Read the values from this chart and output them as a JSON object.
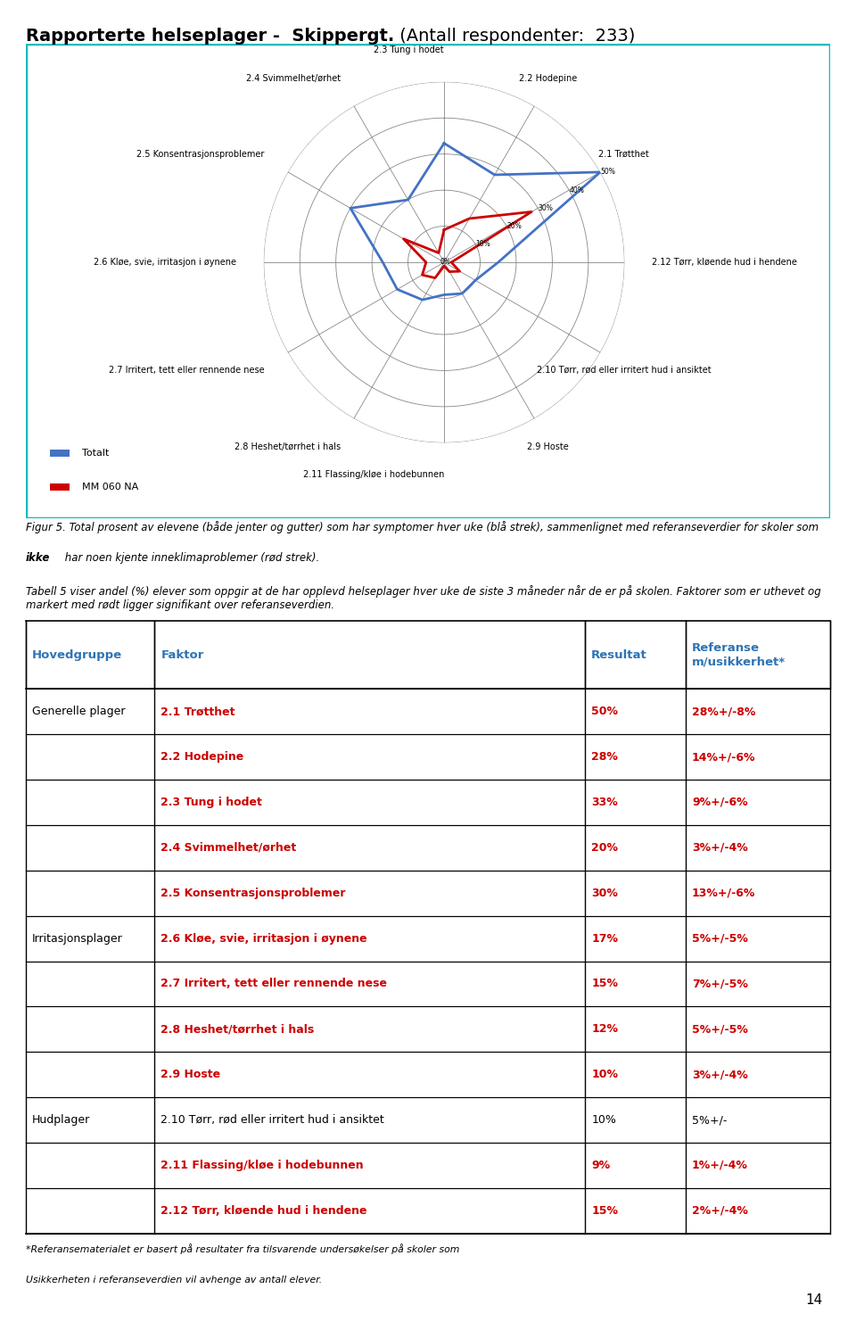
{
  "title_bold": "Rapporterte helseplager -  Skippergt.",
  "title_normal": " (Antall respondenter:  233)",
  "radar_labels": [
    "2.3 Tung i hodet",
    "2.2 Hodepine",
    "2.1 Trøtthet",
    "2.12 Tørr, kløende hud i hendene",
    "2.10 Tørr, rød eller irritert hud i ansiktet",
    "2.9 Hoste",
    "2.11 Flassing/kløe i hodebunnen",
    "2.8 Heshet/tørrhet i hals",
    "2.7 Irritert, tett eller rennende nese",
    "2.6 Kløe, svie, irritasjon i øynene",
    "2.5 Konsentrasjonsproblemer",
    "2.4 Svimmelhet/ørhet"
  ],
  "totalt_values": [
    33,
    28,
    50,
    15,
    10,
    10,
    9,
    12,
    15,
    17,
    30,
    20
  ],
  "ref_values": [
    9,
    14,
    28,
    2,
    5,
    3,
    1,
    5,
    7,
    5,
    13,
    3
  ],
  "radar_max": 50,
  "radar_ticks": [
    10,
    20,
    30,
    40,
    50
  ],
  "blue_color": "#4472C4",
  "red_color": "#CC0000",
  "radar_border": "#00BFBF",
  "legend_totalt": "Totalt",
  "legend_ref": "MM 060 NA",
  "table_header": [
    "Hovedgruppe",
    "Faktor",
    "Resultat",
    "Referanse\nm/usikkerhet*"
  ],
  "table_rows": [
    [
      "Generelle plager",
      "2.1 Trøtthet",
      "50%",
      "28%+/-8%",
      true
    ],
    [
      "",
      "2.2 Hodepine",
      "28%",
      "14%+/-6%",
      true
    ],
    [
      "",
      "2.3 Tung i hodet",
      "33%",
      "9%+/-6%",
      true
    ],
    [
      "",
      "2.4 Svimmelhet/ørhet",
      "20%",
      "3%+/-4%",
      true
    ],
    [
      "",
      "2.5 Konsentrasjonsproblemer",
      "30%",
      "13%+/-6%",
      true
    ],
    [
      "Irritasjonsplager",
      "2.6 Kløe, svie, irritasjon i øynene",
      "17%",
      "5%+/-5%",
      true
    ],
    [
      "",
      "2.7 Irritert, tett eller rennende nese",
      "15%",
      "7%+/-5%",
      true
    ],
    [
      "",
      "2.8 Heshet/tørrhet i hals",
      "12%",
      "5%+/-5%",
      true
    ],
    [
      "",
      "2.9 Hoste",
      "10%",
      "3%+/-4%",
      true
    ],
    [
      "Hudplager",
      "2.10 Tørr, rød eller irritert hud i ansiktet",
      "10%",
      "5%+/-",
      false
    ],
    [
      "",
      "2.11 Flassing/kløe i hodebunnen",
      "9%",
      "1%+/-4%",
      true
    ],
    [
      "",
      "2.12 Tørr, kløende hud i hendene",
      "15%",
      "2%+/-4%",
      true
    ]
  ],
  "groups": [
    {
      "name": "Generelle plager",
      "size": 5
    },
    {
      "name": "Irritasjonsplager",
      "size": 4
    },
    {
      "name": "Hudplager",
      "size": 3
    }
  ],
  "page_number": "14",
  "header_blue": "#2E74B5",
  "table_red": "#CC0000",
  "table_black": "#000000"
}
